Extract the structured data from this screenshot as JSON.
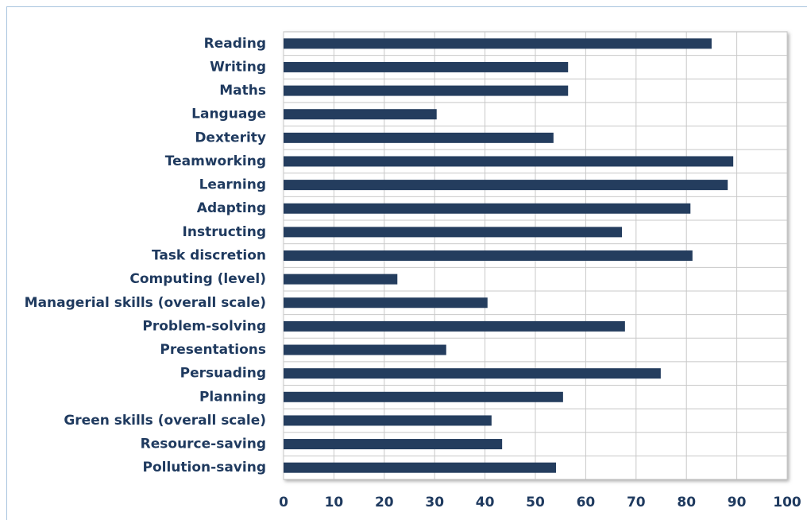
{
  "chart_data": {
    "type": "hbar",
    "categories": [
      "Reading",
      "Writing",
      "Maths",
      "Language",
      "Dexterity",
      "Teamworking",
      "Learning",
      "Adapting",
      "Instructing",
      "Task discretion",
      "Computing (level)",
      "Managerial skills (overall scale)",
      "Problem-solving",
      "Presentations",
      "Persuading",
      "Planning",
      "Green skills  (overall scale)",
      "Resource-saving",
      "Pollution-saving"
    ],
    "values": [
      85.0,
      56.5,
      56.5,
      30.4,
      53.6,
      89.3,
      88.2,
      80.8,
      67.2,
      81.2,
      22.6,
      40.5,
      67.8,
      32.3,
      74.9,
      55.5,
      41.3,
      43.4,
      54.1
    ],
    "color": "#243d5e",
    "xlim": [
      0,
      100
    ],
    "xticks": [
      0,
      10,
      20,
      30,
      40,
      50,
      60,
      70,
      80,
      90,
      100
    ],
    "grid": true
  }
}
